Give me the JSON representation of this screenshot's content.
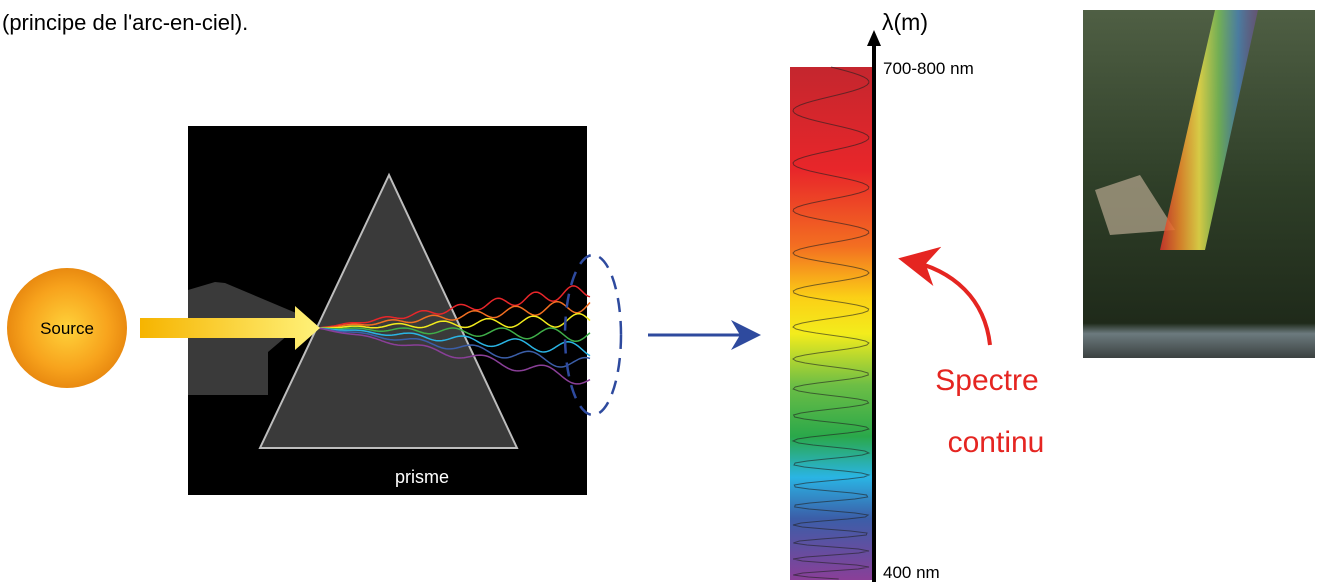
{
  "caption": "(principe de l'arc-en-ciel).",
  "source_label": "Source",
  "prism_label": "prisme",
  "spectrum": {
    "axis_label": "λ(m)",
    "top_label": "700-800 nm",
    "bottom_label": "400 nm"
  },
  "annotation": {
    "line1": "Spectre",
    "line2": "continu"
  }
}
